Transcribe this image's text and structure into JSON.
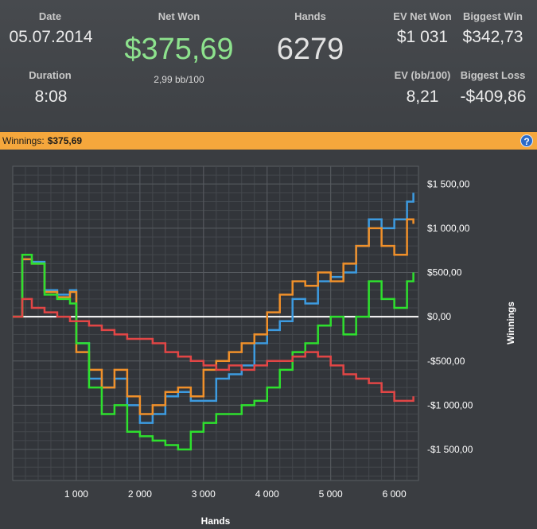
{
  "stats": {
    "date": {
      "label": "Date",
      "value": "05.07.2014"
    },
    "duration": {
      "label": "Duration",
      "value": "8:08"
    },
    "net_won": {
      "label": "Net Won",
      "value": "$375,69",
      "sub": "2,99 bb/100"
    },
    "hands": {
      "label": "Hands",
      "value": "6279"
    },
    "ev_net_won": {
      "label": "EV Net Won",
      "value": "$1 031"
    },
    "biggest_win": {
      "label": "Biggest Win",
      "value": "$342,73"
    },
    "ev_bb100": {
      "label": "EV (bb/100)",
      "value": "8,21"
    },
    "biggest_loss": {
      "label": "Biggest Loss",
      "value": "-$409,86"
    }
  },
  "winnings_bar": {
    "label": "Winnings:",
    "value": "$375,69",
    "help_label": "?"
  },
  "chart_data": {
    "type": "line",
    "xlabel": "Hands",
    "ylabel": "Winnings",
    "xlim": [
      0,
      6380
    ],
    "ylim": [
      -1850,
      1700
    ],
    "x_ticks": [
      1000,
      2000,
      3000,
      4000,
      5000,
      6000
    ],
    "x_tick_labels": [
      "1 000",
      "2 000",
      "3 000",
      "4 000",
      "5 000",
      "6 000"
    ],
    "y_ticks": [
      1500,
      1000,
      500,
      0,
      -500,
      -1000,
      -1500
    ],
    "y_tick_labels": [
      "$1 500,00",
      "$1 000,00",
      "$500,00",
      "$0,00",
      "-$500,00",
      "-$1 000,00",
      "-$1 500,00"
    ],
    "grid": true,
    "zero_line": true,
    "series": [
      {
        "color": "#3d9be0",
        "x": [
          0,
          150,
          300,
          500,
          700,
          900,
          1000,
          1200,
          1400,
          1600,
          1800,
          2000,
          2200,
          2400,
          2600,
          2800,
          3000,
          3200,
          3400,
          3600,
          3800,
          4000,
          4200,
          4400,
          4600,
          4800,
          5000,
          5200,
          5400,
          5600,
          5800,
          6000,
          6200,
          6300
        ],
        "y": [
          0,
          650,
          620,
          300,
          250,
          300,
          -300,
          -700,
          -800,
          -700,
          -1000,
          -1200,
          -1100,
          -900,
          -850,
          -950,
          -950,
          -700,
          -650,
          -550,
          -300,
          -150,
          -50,
          200,
          150,
          400,
          450,
          500,
          800,
          1100,
          1000,
          1100,
          1300,
          1400
        ]
      },
      {
        "color": "#f0902a",
        "x": [
          0,
          150,
          300,
          500,
          700,
          900,
          1000,
          1200,
          1400,
          1600,
          1800,
          2000,
          2200,
          2400,
          2600,
          2800,
          3000,
          3200,
          3400,
          3600,
          3800,
          4000,
          4200,
          4400,
          4600,
          4800,
          5000,
          5200,
          5400,
          5600,
          5800,
          6000,
          6200,
          6300
        ],
        "y": [
          0,
          650,
          600,
          280,
          220,
          280,
          -400,
          -600,
          -800,
          -600,
          -900,
          -1100,
          -1000,
          -850,
          -800,
          -900,
          -600,
          -500,
          -400,
          -300,
          -200,
          50,
          250,
          400,
          350,
          500,
          400,
          600,
          800,
          1000,
          800,
          700,
          1100,
          1050
        ]
      },
      {
        "color": "#2ee02e",
        "x": [
          0,
          150,
          300,
          500,
          700,
          900,
          1000,
          1200,
          1400,
          1600,
          1800,
          2000,
          2200,
          2400,
          2600,
          2800,
          3000,
          3200,
          3400,
          3600,
          3800,
          4000,
          4200,
          4400,
          4600,
          4800,
          5000,
          5200,
          5400,
          5600,
          5800,
          6000,
          6200,
          6300
        ],
        "y": [
          0,
          700,
          600,
          250,
          200,
          150,
          -300,
          -800,
          -1100,
          -1000,
          -1300,
          -1350,
          -1400,
          -1450,
          -1500,
          -1300,
          -1200,
          -1100,
          -1100,
          -1000,
          -950,
          -800,
          -600,
          -400,
          -300,
          -100,
          0,
          -200,
          0,
          400,
          200,
          100,
          400,
          500
        ]
      },
      {
        "color": "#e24646",
        "x": [
          0,
          150,
          300,
          500,
          700,
          900,
          1000,
          1200,
          1400,
          1600,
          1800,
          2000,
          2200,
          2400,
          2600,
          2800,
          3000,
          3200,
          3400,
          3600,
          3800,
          4000,
          4200,
          4400,
          4600,
          4800,
          5000,
          5200,
          5400,
          5600,
          5800,
          6000,
          6200,
          6300
        ],
        "y": [
          0,
          200,
          100,
          50,
          0,
          -50,
          -50,
          -100,
          -150,
          -200,
          -250,
          -250,
          -300,
          -400,
          -450,
          -500,
          -550,
          -600,
          -550,
          -600,
          -550,
          -500,
          -500,
          -450,
          -400,
          -450,
          -550,
          -650,
          -700,
          -750,
          -850,
          -950,
          -950,
          -900
        ]
      }
    ]
  }
}
